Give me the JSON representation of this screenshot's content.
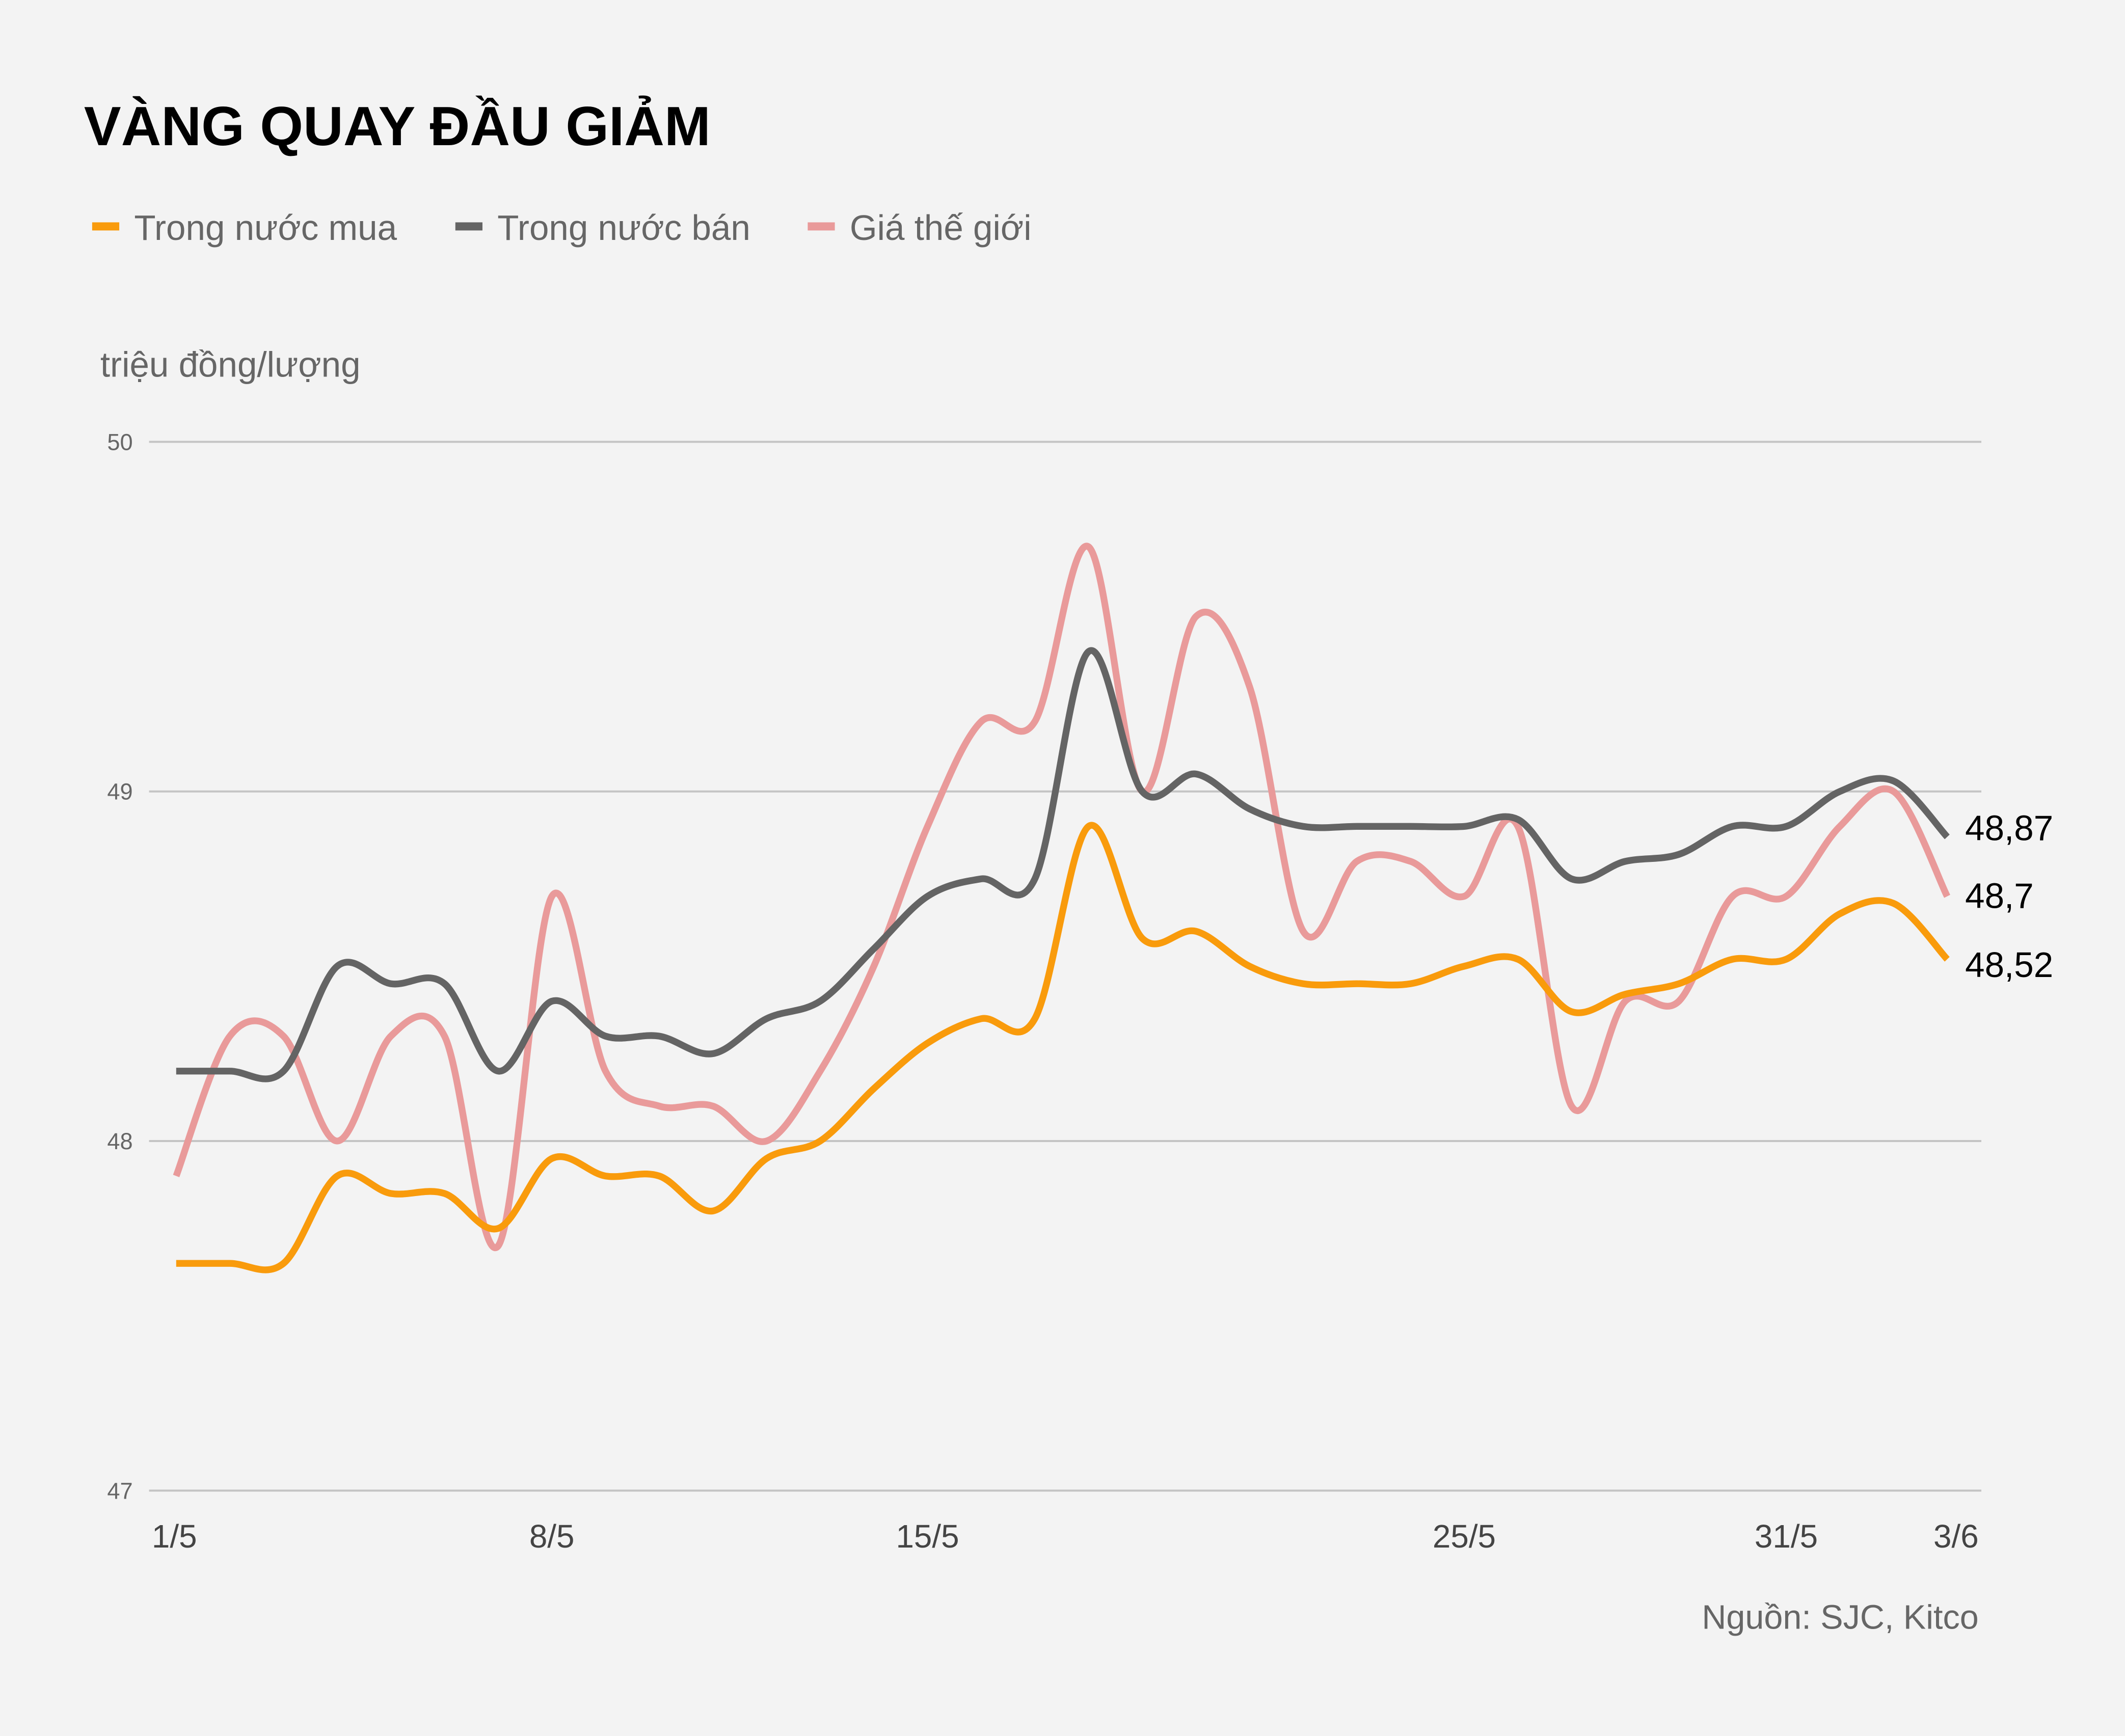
{
  "chart_data": {
    "type": "line",
    "title": "VÀNG QUAY ĐẦU GIẢM",
    "ylabel": "triệu đồng/lượng",
    "source": "Nguồn: SJC, Kitco",
    "ylim": [
      47,
      50
    ],
    "yticks": [
      "50",
      "49",
      "48",
      "47"
    ],
    "yticks_values": [
      50,
      49,
      48,
      47
    ],
    "grid": true,
    "legend_position": "top-left",
    "x": [
      "1/5",
      "2/5",
      "3/5",
      "4/5",
      "5/5",
      "6/5",
      "7/5",
      "8/5",
      "9/5",
      "10/5",
      "11/5",
      "12/5",
      "13/5",
      "14/5",
      "15/5",
      "16/5",
      "17/5",
      "18/5",
      "19/5",
      "20/5",
      "21/5",
      "22/5",
      "23/5",
      "24/5",
      "25/5",
      "26/5",
      "27/5",
      "28/5",
      "29/5",
      "30/5",
      "31/5",
      "1/6",
      "2/6",
      "3/6"
    ],
    "xtick_labels": [
      "1/5",
      "8/5",
      "15/5",
      "25/5",
      "31/5",
      "3/6"
    ],
    "series": [
      {
        "name": "Trong nước mua",
        "color": "#f99b0c",
        "end_label": "48,52",
        "values": [
          47.65,
          47.65,
          47.65,
          47.9,
          47.85,
          47.85,
          47.75,
          47.95,
          47.9,
          47.9,
          47.8,
          47.95,
          48.0,
          48.15,
          48.28,
          48.35,
          48.35,
          48.9,
          48.58,
          48.6,
          48.5,
          48.45,
          48.45,
          48.45,
          48.5,
          48.52,
          48.37,
          48.42,
          48.45,
          48.52,
          48.52,
          48.65,
          48.68,
          48.52
        ]
      },
      {
        "name": "Trong nước bán",
        "color": "#646464",
        "end_label": "48,87",
        "values": [
          48.2,
          48.2,
          48.2,
          48.5,
          48.45,
          48.45,
          48.2,
          48.4,
          48.3,
          48.3,
          48.25,
          48.35,
          48.4,
          48.55,
          48.7,
          48.75,
          48.75,
          49.4,
          49.0,
          49.05,
          48.95,
          48.9,
          48.9,
          48.9,
          48.9,
          48.92,
          48.75,
          48.8,
          48.82,
          48.9,
          48.9,
          49.0,
          49.03,
          48.87
        ]
      },
      {
        "name": "Giá thế giới",
        "color": "#e99a9a",
        "end_label": "48,7",
        "values": [
          47.9,
          48.3,
          48.3,
          48.0,
          48.3,
          48.3,
          47.7,
          48.7,
          48.2,
          48.1,
          48.1,
          48.0,
          48.2,
          48.5,
          48.9,
          49.2,
          49.2,
          49.7,
          49.0,
          49.5,
          49.3,
          48.6,
          48.8,
          48.8,
          48.7,
          48.9,
          48.1,
          48.4,
          48.4,
          48.7,
          48.7,
          48.9,
          49.0,
          48.7
        ]
      }
    ]
  }
}
